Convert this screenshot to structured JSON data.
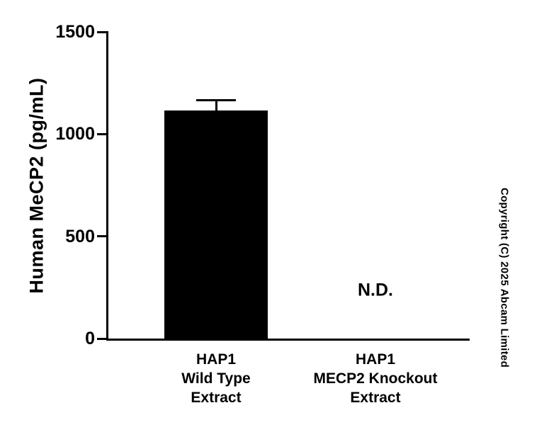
{
  "chart_data": {
    "type": "bar",
    "title": "",
    "ylabel": "Human MeCP2 (pg/mL)",
    "xlabel": "",
    "ylim": [
      0,
      1500
    ],
    "yticks": [
      0,
      500,
      1000,
      1500
    ],
    "categories": [
      "HAP1\nWild Type\nExtract",
      "HAP1\nMECP2 Knockout\nExtract"
    ],
    "series": [
      {
        "name": "Human MeCP2 (pg/mL)",
        "values": [
          1115,
          null
        ]
      }
    ],
    "error_bars": [
      50,
      null
    ],
    "not_detected_label": "N.D.",
    "bar_color": "#000000",
    "axis_color": "#000000",
    "grid": false,
    "legend_position": "none"
  },
  "copyright": {
    "text": "Copyright (C) 2025 Abcam Limited"
  }
}
